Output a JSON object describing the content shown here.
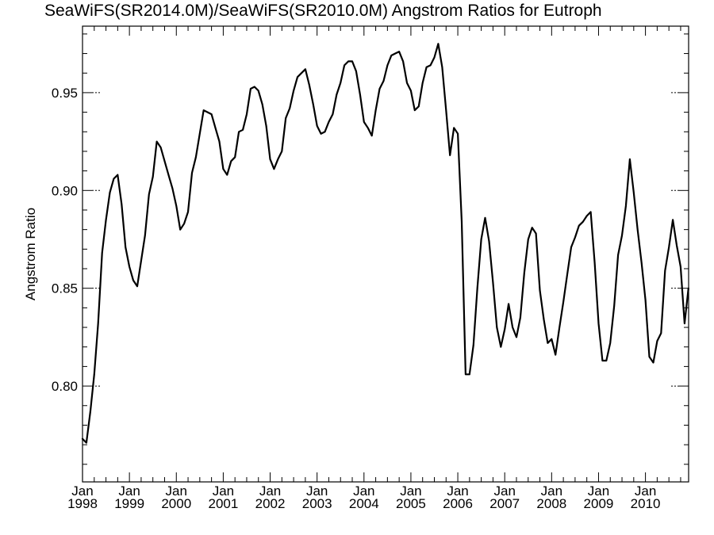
{
  "chart_data": {
    "type": "line",
    "title": "SeaWiFS(SR2014.0M)/SeaWiFS(SR2010.0M)  Angstrom Ratios for Eutroph",
    "xlabel": "",
    "ylabel": "Angstrom Ratio",
    "xlim": [
      1998.0,
      2010.92
    ],
    "ylim": [
      0.751,
      0.984
    ],
    "grid": false,
    "x_ticks": [
      {
        "month": "Jan",
        "year": "1998",
        "value": 1998
      },
      {
        "month": "Jan",
        "year": "1999",
        "value": 1999
      },
      {
        "month": "Jan",
        "year": "2000",
        "value": 2000
      },
      {
        "month": "Jan",
        "year": "2001",
        "value": 2001
      },
      {
        "month": "Jan",
        "year": "2002",
        "value": 2002
      },
      {
        "month": "Jan",
        "year": "2003",
        "value": 2003
      },
      {
        "month": "Jan",
        "year": "2004",
        "value": 2004
      },
      {
        "month": "Jan",
        "year": "2005",
        "value": 2005
      },
      {
        "month": "Jan",
        "year": "2006",
        "value": 2006
      },
      {
        "month": "Jan",
        "year": "2007",
        "value": 2007
      },
      {
        "month": "Jan",
        "year": "2008",
        "value": 2008
      },
      {
        "month": "Jan",
        "year": "2009",
        "value": 2009
      },
      {
        "month": "Jan",
        "year": "2010",
        "value": 2010
      }
    ],
    "y_ticks": [
      {
        "label": "0.80",
        "value": 0.8
      },
      {
        "label": "0.85",
        "value": 0.85
      },
      {
        "label": "0.90",
        "value": 0.9
      },
      {
        "label": "0.95",
        "value": 0.95
      }
    ],
    "series": [
      {
        "color": "#000000",
        "x": [
          1998.0,
          1998.083,
          1998.167,
          1998.25,
          1998.333,
          1998.417,
          1998.5,
          1998.583,
          1998.667,
          1998.75,
          1998.833,
          1998.917,
          1999.0,
          1999.083,
          1999.167,
          1999.25,
          1999.333,
          1999.417,
          1999.5,
          1999.583,
          1999.667,
          1999.75,
          1999.833,
          1999.917,
          2000.0,
          2000.083,
          2000.167,
          2000.25,
          2000.333,
          2000.417,
          2000.5,
          2000.583,
          2000.667,
          2000.75,
          2000.833,
          2000.917,
          2001.0,
          2001.083,
          2001.167,
          2001.25,
          2001.333,
          2001.417,
          2001.5,
          2001.583,
          2001.667,
          2001.75,
          2001.833,
          2001.917,
          2002.0,
          2002.083,
          2002.167,
          2002.25,
          2002.333,
          2002.417,
          2002.5,
          2002.583,
          2002.667,
          2002.75,
          2002.833,
          2002.917,
          2003.0,
          2003.083,
          2003.167,
          2003.25,
          2003.333,
          2003.417,
          2003.5,
          2003.583,
          2003.667,
          2003.75,
          2003.833,
          2003.917,
          2004.0,
          2004.083,
          2004.167,
          2004.25,
          2004.333,
          2004.417,
          2004.5,
          2004.583,
          2004.667,
          2004.75,
          2004.833,
          2004.917,
          2005.0,
          2005.083,
          2005.167,
          2005.25,
          2005.333,
          2005.417,
          2005.5,
          2005.583,
          2005.667,
          2005.75,
          2005.833,
          2005.917,
          2006.0,
          2006.083,
          2006.167,
          2006.25,
          2006.333,
          2006.417,
          2006.5,
          2006.583,
          2006.667,
          2006.75,
          2006.833,
          2006.917,
          2007.0,
          2007.083,
          2007.167,
          2007.25,
          2007.333,
          2007.417,
          2007.5,
          2007.583,
          2007.667,
          2007.75,
          2007.833,
          2007.917,
          2008.0,
          2008.083,
          2008.167,
          2008.25,
          2008.333,
          2008.417,
          2008.5,
          2008.583,
          2008.667,
          2008.75,
          2008.833,
          2008.917,
          2009.0,
          2009.083,
          2009.167,
          2009.25,
          2009.333,
          2009.417,
          2009.5,
          2009.583,
          2009.667,
          2009.75,
          2009.833,
          2009.917,
          2010.0,
          2010.083,
          2010.167,
          2010.25,
          2010.333,
          2010.417,
          2010.5,
          2010.583,
          2010.667,
          2010.75,
          2010.833,
          2010.917
        ],
        "y": [
          0.773,
          0.771,
          0.787,
          0.806,
          0.832,
          0.868,
          0.885,
          0.899,
          0.906,
          0.908,
          0.893,
          0.871,
          0.861,
          0.854,
          0.851,
          0.864,
          0.877,
          0.898,
          0.907,
          0.925,
          0.922,
          0.915,
          0.908,
          0.901,
          0.892,
          0.88,
          0.883,
          0.889,
          0.909,
          0.917,
          0.929,
          0.941,
          0.94,
          0.939,
          0.932,
          0.925,
          0.911,
          0.908,
          0.915,
          0.917,
          0.93,
          0.931,
          0.939,
          0.952,
          0.953,
          0.951,
          0.944,
          0.933,
          0.916,
          0.911,
          0.916,
          0.92,
          0.937,
          0.942,
          0.951,
          0.958,
          0.96,
          0.962,
          0.954,
          0.944,
          0.933,
          0.929,
          0.93,
          0.935,
          0.939,
          0.949,
          0.955,
          0.964,
          0.966,
          0.966,
          0.961,
          0.949,
          0.935,
          0.932,
          0.928,
          0.941,
          0.952,
          0.956,
          0.964,
          0.969,
          0.97,
          0.971,
          0.966,
          0.955,
          0.951,
          0.941,
          0.943,
          0.955,
          0.963,
          0.964,
          0.968,
          0.975,
          0.963,
          0.941,
          0.918,
          0.932,
          0.929,
          0.884,
          0.806,
          0.806,
          0.821,
          0.85,
          0.875,
          0.886,
          0.874,
          0.853,
          0.83,
          0.82,
          0.829,
          0.842,
          0.83,
          0.825,
          0.835,
          0.858,
          0.875,
          0.881,
          0.878,
          0.849,
          0.834,
          0.822,
          0.824,
          0.816,
          0.83,
          0.843,
          0.857,
          0.871,
          0.876,
          0.882,
          0.884,
          0.887,
          0.889,
          0.863,
          0.832,
          0.813,
          0.813,
          0.822,
          0.841,
          0.867,
          0.877,
          0.892,
          0.916,
          0.899,
          0.88,
          0.863,
          0.844,
          0.815,
          0.812,
          0.823,
          0.827,
          0.859,
          0.871,
          0.885,
          0.872,
          0.861,
          0.832,
          0.85
        ]
      }
    ]
  }
}
